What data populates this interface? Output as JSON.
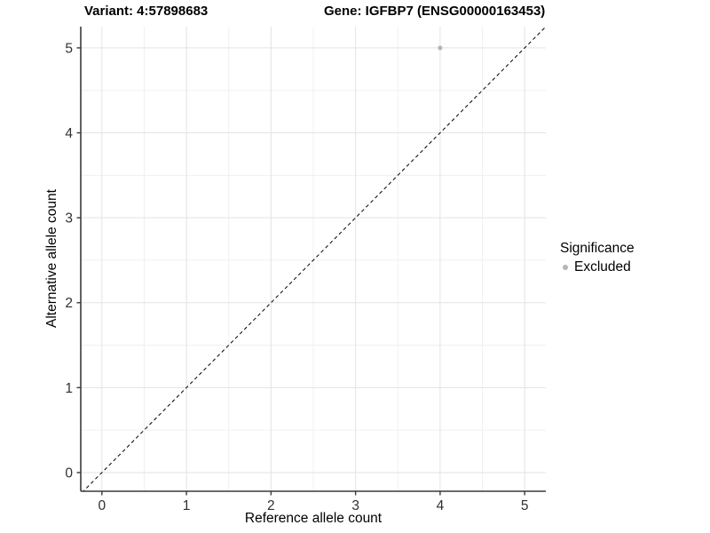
{
  "title": {
    "variant": "Variant: 4:57898683",
    "gene": "Gene: IGFBP7 (ENSG00000163453)"
  },
  "chart_data": {
    "type": "scatter",
    "xlabel": "Reference allele count",
    "ylabel": "Alternative allele count",
    "xlim": [
      -0.25,
      5.25
    ],
    "ylim": [
      -0.22,
      5.25
    ],
    "xticks": [
      0,
      1,
      2,
      3,
      4,
      5
    ],
    "yticks": [
      0,
      1,
      2,
      3,
      4,
      5
    ],
    "xtick_labels": [
      "0",
      "1",
      "2",
      "3",
      "4",
      "5"
    ],
    "ytick_labels": [
      "0",
      "1",
      "2",
      "3",
      "4",
      "5"
    ],
    "grid": true,
    "minor_grid": true,
    "series": [
      {
        "name": "Excluded",
        "color": "#b5b5b5",
        "points": [
          {
            "x": 4,
            "y": 5
          }
        ]
      }
    ],
    "reference_line": {
      "slope": 1,
      "intercept": 0,
      "style": "dashed",
      "color": "#000000"
    },
    "legend": {
      "title": "Significance",
      "position": "right",
      "items": [
        {
          "label": "Excluded",
          "color": "#b5b5b5"
        }
      ]
    }
  },
  "colors": {
    "background": "#ffffff",
    "grid_major": "#e3e3e3",
    "grid_minor": "#f0f0f0",
    "axis_line": "#3a3a3a",
    "tick_label": "#303030",
    "point": "#b5b5b5"
  }
}
